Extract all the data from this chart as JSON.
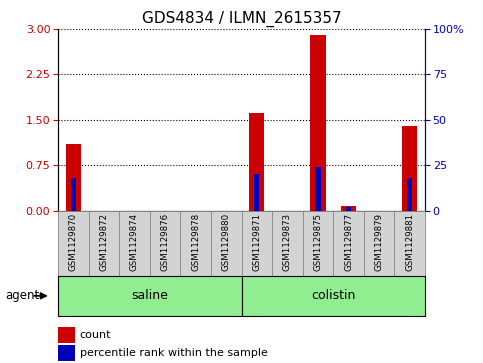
{
  "title": "GDS4834 / ILMN_2615357",
  "samples": [
    "GSM1129870",
    "GSM1129872",
    "GSM1129874",
    "GSM1129876",
    "GSM1129878",
    "GSM1129880",
    "GSM1129871",
    "GSM1129873",
    "GSM1129875",
    "GSM1129877",
    "GSM1129879",
    "GSM1129881"
  ],
  "count_values": [
    1.1,
    0.0,
    0.0,
    0.0,
    0.0,
    0.0,
    1.62,
    0.0,
    2.9,
    0.08,
    0.0,
    1.4
  ],
  "percentile_values": [
    18,
    0,
    0,
    0,
    0,
    0,
    20,
    0,
    24,
    2,
    0,
    18
  ],
  "groups": [
    {
      "label": "saline",
      "start": 0,
      "end": 5
    },
    {
      "label": "colistin",
      "start": 6,
      "end": 11
    }
  ],
  "ylim_left": [
    0,
    3
  ],
  "ylim_right": [
    0,
    100
  ],
  "yticks_left": [
    0,
    0.75,
    1.5,
    2.25,
    3
  ],
  "yticks_right": [
    0,
    25,
    50,
    75,
    100
  ],
  "bar_width": 0.5,
  "count_color": "#cc0000",
  "percentile_color": "#0000bb",
  "group_fill_color": "#90ee90",
  "sample_box_color": "#d3d3d3",
  "agent_label": "agent",
  "legend_count": "count",
  "legend_percentile": "percentile rank within the sample",
  "dotted_line_color": "black",
  "figure_bg": "white",
  "title_fontsize": 11
}
